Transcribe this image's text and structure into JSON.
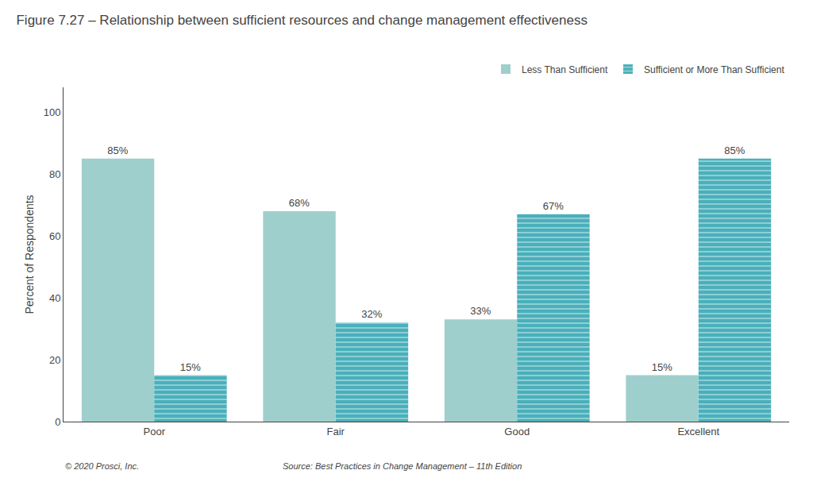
{
  "chart_data": {
    "type": "bar",
    "title": "Figure 7.27 – Relationship between sufficient resources and change management effectiveness",
    "categories": [
      "Poor",
      "Fair",
      "Good",
      "Excellent"
    ],
    "series": [
      {
        "name": "Less Than Sufficient",
        "color": "#9ecfcc",
        "values": [
          85,
          68,
          33,
          15
        ],
        "value_labels": [
          "85%",
          "68%",
          "33%",
          "15%"
        ]
      },
      {
        "name": "Sufficient or More Than Sufficient",
        "color": "#4ab0bb",
        "values": [
          15,
          32,
          67,
          85
        ],
        "value_labels": [
          "15%",
          "32%",
          "67%",
          "85%"
        ]
      }
    ],
    "ylabel": "Percent of Respondents",
    "ylim": [
      0,
      108
    ],
    "yticks": [
      0,
      20,
      40,
      60,
      80,
      100
    ],
    "grid": false,
    "legend": "upper right",
    "data_labels": true,
    "annotations": [
      "© 2020 Prosci, Inc.",
      "Source: Best Practices in Change Management – 11th Edition"
    ]
  }
}
